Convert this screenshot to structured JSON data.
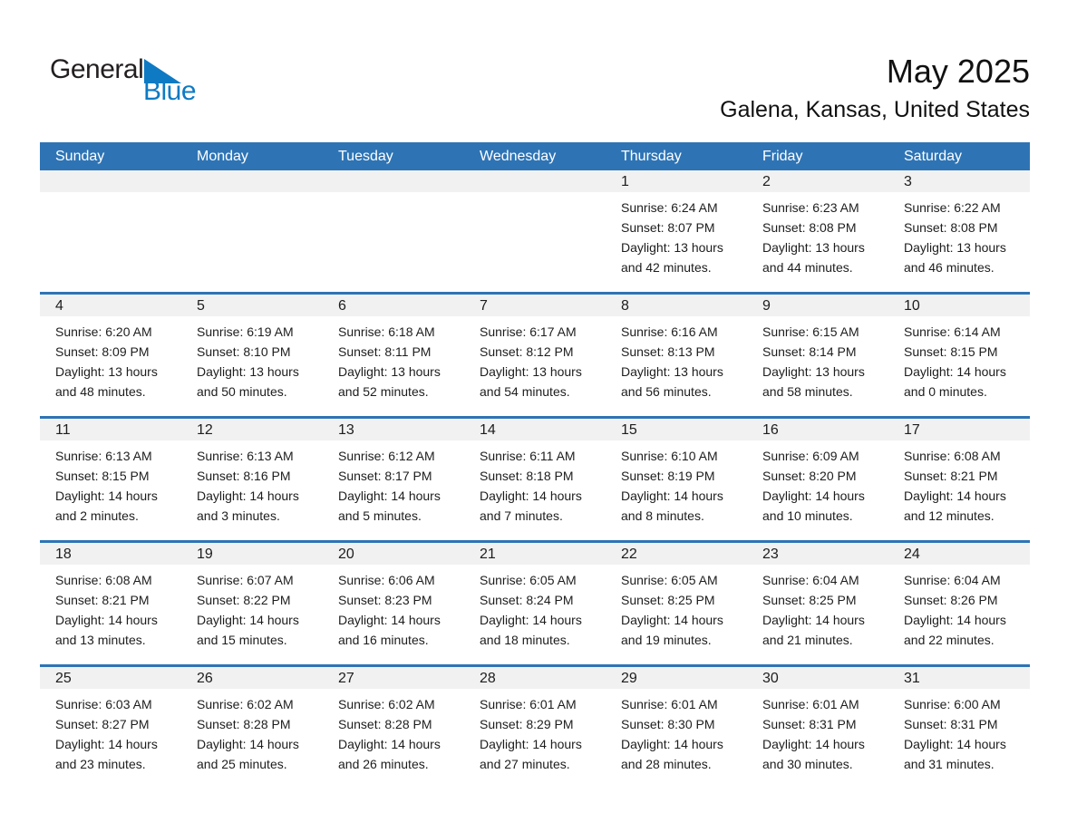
{
  "logo": {
    "word_general": "General",
    "word_blue": "Blue"
  },
  "title": "May 2025",
  "subtitle": "Galena, Kansas, United States",
  "colors": {
    "header_blue": "#2e74b5",
    "row_divider_blue": "#2e74b5",
    "day_strip_gray": "#f1f1f1",
    "logo_blue": "#0e7ac4",
    "logo_black": "#231f20"
  },
  "weekdays": [
    "Sunday",
    "Monday",
    "Tuesday",
    "Wednesday",
    "Thursday",
    "Friday",
    "Saturday"
  ],
  "weeks": [
    [
      {
        "day": "",
        "sunrise": "",
        "sunset": "",
        "daylight": ""
      },
      {
        "day": "",
        "sunrise": "",
        "sunset": "",
        "daylight": ""
      },
      {
        "day": "",
        "sunrise": "",
        "sunset": "",
        "daylight": ""
      },
      {
        "day": "",
        "sunrise": "",
        "sunset": "",
        "daylight": ""
      },
      {
        "day": "1",
        "sunrise": "Sunrise: 6:24 AM",
        "sunset": "Sunset: 8:07 PM",
        "daylight": "Daylight: 13 hours and 42 minutes."
      },
      {
        "day": "2",
        "sunrise": "Sunrise: 6:23 AM",
        "sunset": "Sunset: 8:08 PM",
        "daylight": "Daylight: 13 hours and 44 minutes."
      },
      {
        "day": "3",
        "sunrise": "Sunrise: 6:22 AM",
        "sunset": "Sunset: 8:08 PM",
        "daylight": "Daylight: 13 hours and 46 minutes."
      }
    ],
    [
      {
        "day": "4",
        "sunrise": "Sunrise: 6:20 AM",
        "sunset": "Sunset: 8:09 PM",
        "daylight": "Daylight: 13 hours and 48 minutes."
      },
      {
        "day": "5",
        "sunrise": "Sunrise: 6:19 AM",
        "sunset": "Sunset: 8:10 PM",
        "daylight": "Daylight: 13 hours and 50 minutes."
      },
      {
        "day": "6",
        "sunrise": "Sunrise: 6:18 AM",
        "sunset": "Sunset: 8:11 PM",
        "daylight": "Daylight: 13 hours and 52 minutes."
      },
      {
        "day": "7",
        "sunrise": "Sunrise: 6:17 AM",
        "sunset": "Sunset: 8:12 PM",
        "daylight": "Daylight: 13 hours and 54 minutes."
      },
      {
        "day": "8",
        "sunrise": "Sunrise: 6:16 AM",
        "sunset": "Sunset: 8:13 PM",
        "daylight": "Daylight: 13 hours and 56 minutes."
      },
      {
        "day": "9",
        "sunrise": "Sunrise: 6:15 AM",
        "sunset": "Sunset: 8:14 PM",
        "daylight": "Daylight: 13 hours and 58 minutes."
      },
      {
        "day": "10",
        "sunrise": "Sunrise: 6:14 AM",
        "sunset": "Sunset: 8:15 PM",
        "daylight": "Daylight: 14 hours and 0 minutes."
      }
    ],
    [
      {
        "day": "11",
        "sunrise": "Sunrise: 6:13 AM",
        "sunset": "Sunset: 8:15 PM",
        "daylight": "Daylight: 14 hours and 2 minutes."
      },
      {
        "day": "12",
        "sunrise": "Sunrise: 6:13 AM",
        "sunset": "Sunset: 8:16 PM",
        "daylight": "Daylight: 14 hours and 3 minutes."
      },
      {
        "day": "13",
        "sunrise": "Sunrise: 6:12 AM",
        "sunset": "Sunset: 8:17 PM",
        "daylight": "Daylight: 14 hours and 5 minutes."
      },
      {
        "day": "14",
        "sunrise": "Sunrise: 6:11 AM",
        "sunset": "Sunset: 8:18 PM",
        "daylight": "Daylight: 14 hours and 7 minutes."
      },
      {
        "day": "15",
        "sunrise": "Sunrise: 6:10 AM",
        "sunset": "Sunset: 8:19 PM",
        "daylight": "Daylight: 14 hours and 8 minutes."
      },
      {
        "day": "16",
        "sunrise": "Sunrise: 6:09 AM",
        "sunset": "Sunset: 8:20 PM",
        "daylight": "Daylight: 14 hours and 10 minutes."
      },
      {
        "day": "17",
        "sunrise": "Sunrise: 6:08 AM",
        "sunset": "Sunset: 8:21 PM",
        "daylight": "Daylight: 14 hours and 12 minutes."
      }
    ],
    [
      {
        "day": "18",
        "sunrise": "Sunrise: 6:08 AM",
        "sunset": "Sunset: 8:21 PM",
        "daylight": "Daylight: 14 hours and 13 minutes."
      },
      {
        "day": "19",
        "sunrise": "Sunrise: 6:07 AM",
        "sunset": "Sunset: 8:22 PM",
        "daylight": "Daylight: 14 hours and 15 minutes."
      },
      {
        "day": "20",
        "sunrise": "Sunrise: 6:06 AM",
        "sunset": "Sunset: 8:23 PM",
        "daylight": "Daylight: 14 hours and 16 minutes."
      },
      {
        "day": "21",
        "sunrise": "Sunrise: 6:05 AM",
        "sunset": "Sunset: 8:24 PM",
        "daylight": "Daylight: 14 hours and 18 minutes."
      },
      {
        "day": "22",
        "sunrise": "Sunrise: 6:05 AM",
        "sunset": "Sunset: 8:25 PM",
        "daylight": "Daylight: 14 hours and 19 minutes."
      },
      {
        "day": "23",
        "sunrise": "Sunrise: 6:04 AM",
        "sunset": "Sunset: 8:25 PM",
        "daylight": "Daylight: 14 hours and 21 minutes."
      },
      {
        "day": "24",
        "sunrise": "Sunrise: 6:04 AM",
        "sunset": "Sunset: 8:26 PM",
        "daylight": "Daylight: 14 hours and 22 minutes."
      }
    ],
    [
      {
        "day": "25",
        "sunrise": "Sunrise: 6:03 AM",
        "sunset": "Sunset: 8:27 PM",
        "daylight": "Daylight: 14 hours and 23 minutes."
      },
      {
        "day": "26",
        "sunrise": "Sunrise: 6:02 AM",
        "sunset": "Sunset: 8:28 PM",
        "daylight": "Daylight: 14 hours and 25 minutes."
      },
      {
        "day": "27",
        "sunrise": "Sunrise: 6:02 AM",
        "sunset": "Sunset: 8:28 PM",
        "daylight": "Daylight: 14 hours and 26 minutes."
      },
      {
        "day": "28",
        "sunrise": "Sunrise: 6:01 AM",
        "sunset": "Sunset: 8:29 PM",
        "daylight": "Daylight: 14 hours and 27 minutes."
      },
      {
        "day": "29",
        "sunrise": "Sunrise: 6:01 AM",
        "sunset": "Sunset: 8:30 PM",
        "daylight": "Daylight: 14 hours and 28 minutes."
      },
      {
        "day": "30",
        "sunrise": "Sunrise: 6:01 AM",
        "sunset": "Sunset: 8:31 PM",
        "daylight": "Daylight: 14 hours and 30 minutes."
      },
      {
        "day": "31",
        "sunrise": "Sunrise: 6:00 AM",
        "sunset": "Sunset: 8:31 PM",
        "daylight": "Daylight: 14 hours and 31 minutes."
      }
    ]
  ]
}
